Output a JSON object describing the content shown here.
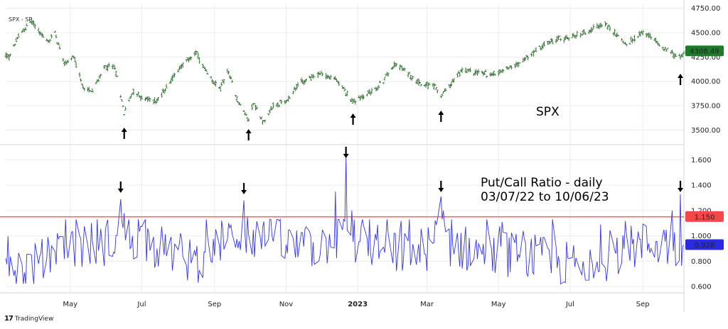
{
  "symbol_label": "SPX - SP",
  "spx_label": "SPX",
  "ratio_title_line1": "Put/Call Ratio - daily",
  "ratio_title_line2": "03/07/22 to 10/06/23",
  "watermark": "TradingView",
  "colors": {
    "price_bar": "#2e6b2e",
    "price_tag": "#1f7a2c",
    "ratio_line": "#3535e8",
    "ratio_tag": "#2a2ae0",
    "threshold_line": "#ee3333",
    "threshold_tag": "#f44848",
    "grid": "#ececec",
    "arrow": "#000000"
  },
  "chart_data": [
    {
      "type": "bar",
      "subtype": "ohlc",
      "name": "SPX - SP",
      "ylim": [
        3350,
        4790
      ],
      "yticks": [
        3500,
        3750,
        4000,
        4250,
        4500,
        4750
      ],
      "last_value": 4308.49,
      "last_value_label": "4308.49",
      "x_start": "2022-03-07",
      "x_end": "2023-10-06",
      "anchors": [
        [
          "2022-03-07",
          4260
        ],
        [
          "2022-03-10",
          4250
        ],
        [
          "2022-03-18",
          4460
        ],
        [
          "2022-03-29",
          4620
        ],
        [
          "2022-04-05",
          4500
        ],
        [
          "2022-04-12",
          4400
        ],
        [
          "2022-04-18",
          4500
        ],
        [
          "2022-04-26",
          4180
        ],
        [
          "2022-05-04",
          4250
        ],
        [
          "2022-05-12",
          3930
        ],
        [
          "2022-05-20",
          3900
        ],
        [
          "2022-05-31",
          4150
        ],
        [
          "2022-06-08",
          4140
        ],
        [
          "2022-06-16",
          3680
        ],
        [
          "2022-06-24",
          3910
        ],
        [
          "2022-07-01",
          3820
        ],
        [
          "2022-07-14",
          3800
        ],
        [
          "2022-08-01",
          4120
        ],
        [
          "2022-08-16",
          4300
        ],
        [
          "2022-08-26",
          4060
        ],
        [
          "2022-09-06",
          3920
        ],
        [
          "2022-09-12",
          4110
        ],
        [
          "2022-09-21",
          3800
        ],
        [
          "2022-09-30",
          3600
        ],
        [
          "2022-10-04",
          3780
        ],
        [
          "2022-10-13",
          3580
        ],
        [
          "2022-10-21",
          3750
        ],
        [
          "2022-11-02",
          3800
        ],
        [
          "2022-11-10",
          3960
        ],
        [
          "2022-11-30",
          4080
        ],
        [
          "2022-12-13",
          4020
        ],
        [
          "2022-12-28",
          3790
        ],
        [
          "2023-01-18",
          3930
        ],
        [
          "2023-02-02",
          4180
        ],
        [
          "2023-02-24",
          3980
        ],
        [
          "2023-03-08",
          3940
        ],
        [
          "2023-03-13",
          3850
        ],
        [
          "2023-03-31",
          4110
        ],
        [
          "2023-04-26",
          4070
        ],
        [
          "2023-05-19",
          4190
        ],
        [
          "2023-06-15",
          4420
        ],
        [
          "2023-07-03",
          4450
        ],
        [
          "2023-07-31",
          4590
        ],
        [
          "2023-08-18",
          4370
        ],
        [
          "2023-09-01",
          4510
        ],
        [
          "2023-09-21",
          4330
        ],
        [
          "2023-10-03",
          4230
        ],
        [
          "2023-10-06",
          4308.49
        ]
      ]
    },
    {
      "type": "line",
      "name": "Put/Call Ratio - daily",
      "ylim": [
        0.55,
        1.72
      ],
      "yticks": [
        0.6,
        0.8,
        1.0,
        1.2,
        1.4,
        1.6
      ],
      "ytick_labels": [
        "0.600",
        "0.800",
        "1.000",
        "1.200",
        "1.400",
        "1.600"
      ],
      "last_value": 0.928,
      "last_value_label": "0.928",
      "threshold": 1.15,
      "threshold_label": "1.150",
      "x_start": "2022-03-07",
      "x_end": "2023-10-06",
      "base_anchors": [
        [
          "2022-03-07",
          0.82
        ],
        [
          "2022-03-20",
          0.74
        ],
        [
          "2022-04-10",
          0.8
        ],
        [
          "2022-05-01",
          0.9
        ],
        [
          "2022-06-01",
          0.95
        ],
        [
          "2022-06-16",
          1.02
        ],
        [
          "2022-07-10",
          0.93
        ],
        [
          "2022-08-15",
          0.8
        ],
        [
          "2022-09-20",
          1.02
        ],
        [
          "2022-10-15",
          0.98
        ],
        [
          "2022-11-15",
          0.88
        ],
        [
          "2022-12-20",
          1.0
        ],
        [
          "2023-01-20",
          0.9
        ],
        [
          "2023-02-20",
          0.86
        ],
        [
          "2023-03-13",
          0.97
        ],
        [
          "2023-04-15",
          0.86
        ],
        [
          "2023-05-15",
          0.85
        ],
        [
          "2023-06-15",
          0.8
        ],
        [
          "2023-07-10",
          0.75
        ],
        [
          "2023-08-15",
          0.88
        ],
        [
          "2023-09-10",
          0.95
        ],
        [
          "2023-10-06",
          0.93
        ]
      ],
      "spikes": [
        [
          "2022-06-13",
          1.29
        ],
        [
          "2022-06-16",
          1.18
        ],
        [
          "2022-09-26",
          1.28
        ],
        [
          "2022-09-29",
          1.15
        ],
        [
          "2022-12-13",
          1.35
        ],
        [
          "2022-12-22",
          1.62
        ],
        [
          "2022-12-27",
          1.2
        ],
        [
          "2023-03-08",
          1.12
        ],
        [
          "2023-03-13",
          1.31
        ],
        [
          "2023-03-15",
          1.2
        ],
        [
          "2023-09-26",
          1.2
        ],
        [
          "2023-10-03",
          1.33
        ],
        [
          "2023-10-06",
          0.928
        ]
      ],
      "arrows_down_at": [
        "2022-06-13",
        "2022-09-26",
        "2022-12-22",
        "2023-03-13",
        "2023-10-03"
      ]
    }
  ],
  "price_arrows_up_at": [
    "2022-06-16",
    "2022-09-30",
    "2022-12-28",
    "2023-03-13",
    "2023-10-03"
  ],
  "x_axis": {
    "labels": [
      {
        "date": "2022-05-01",
        "text": "May"
      },
      {
        "date": "2022-07-01",
        "text": "Jul"
      },
      {
        "date": "2022-09-01",
        "text": "Sep"
      },
      {
        "date": "2022-11-01",
        "text": "Nov"
      },
      {
        "date": "2023-01-01",
        "text": "2023",
        "bold": true
      },
      {
        "date": "2023-03-01",
        "text": "Mar"
      },
      {
        "date": "2023-05-01",
        "text": "May"
      },
      {
        "date": "2023-07-01",
        "text": "Jul"
      },
      {
        "date": "2023-09-01",
        "text": "Sep"
      }
    ]
  }
}
